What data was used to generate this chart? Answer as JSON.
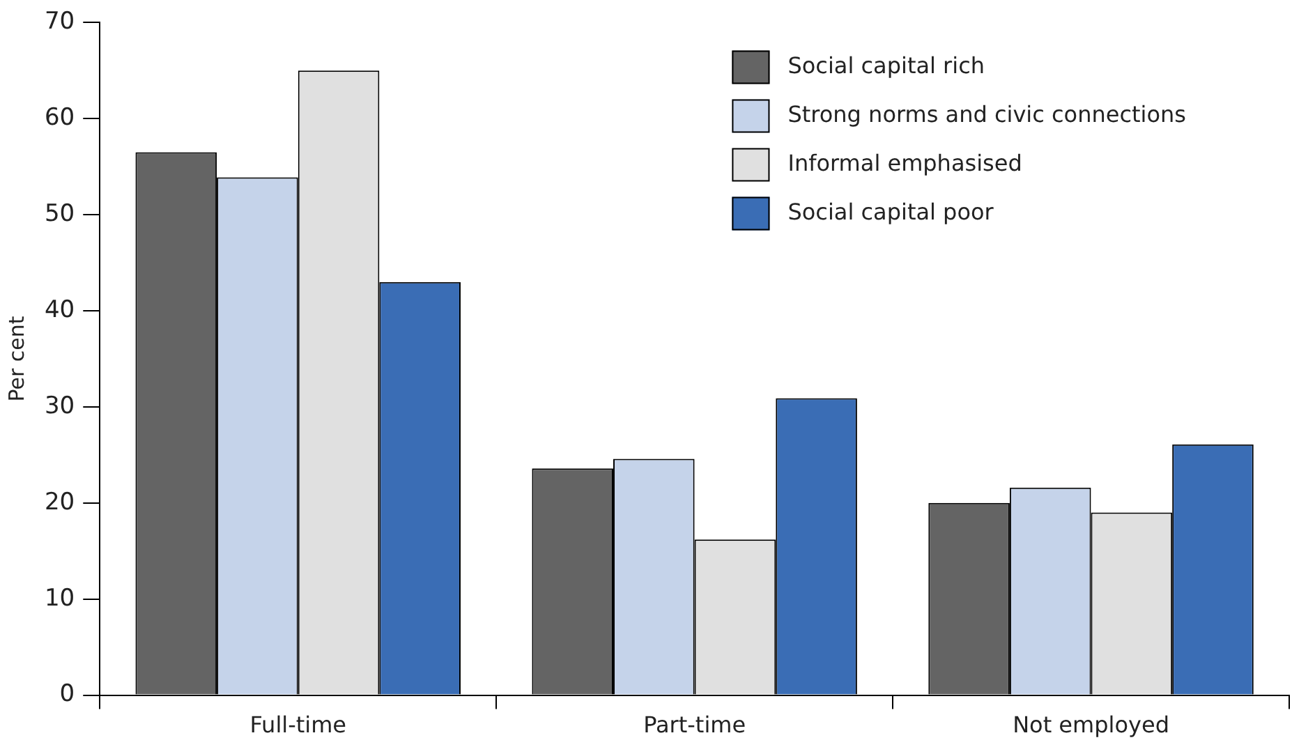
{
  "chart_data": {
    "type": "bar",
    "ylabel": "Per cent",
    "categories": [
      "Full-time",
      "Part-time",
      "Not employed"
    ],
    "series": [
      {
        "name": "Social capital rich",
        "color": "#646464",
        "values": [
          56.5,
          23.6,
          20.0
        ]
      },
      {
        "name": "Strong norms and civic connections",
        "color": "#c5d3ea",
        "values": [
          53.9,
          24.6,
          21.6
        ]
      },
      {
        "name": "Informal emphasised",
        "color": "#e0e0e0",
        "values": [
          65.0,
          16.2,
          19.0
        ]
      },
      {
        "name": "Social capital poor",
        "color": "#3a6db5",
        "values": [
          43.0,
          30.9,
          26.1
        ]
      }
    ],
    "ylim": [
      0,
      70
    ],
    "yticks": [
      0,
      10,
      20,
      30,
      40,
      50,
      60,
      70
    ],
    "grid": false,
    "legend": "top right"
  }
}
